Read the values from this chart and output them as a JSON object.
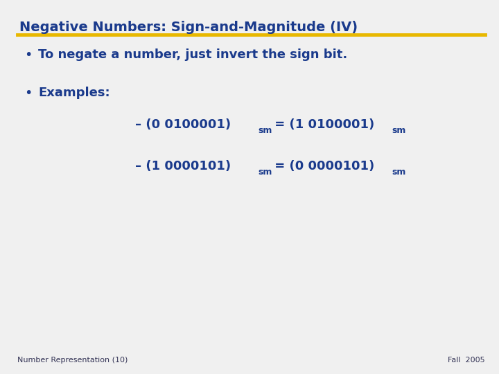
{
  "title": "Negative Numbers: Sign-and-Magnitude (IV)",
  "title_color": "#1a3a8c",
  "title_underline_color": "#e8b800",
  "bg_color": "#f0f0f0",
  "text_color": "#1a3a8c",
  "bullet1": "To negate a number, just invert the sign bit.",
  "bullet2": "Examples:",
  "example1_prefix": "– (0 0100001)",
  "example1_sub": "sm",
  "example1_mid": " = (1 0100001)",
  "example1_sub2": "sm",
  "example2_prefix": "– (1 0000101)",
  "example2_sub": "sm",
  "example2_mid": " = (0 0000101)",
  "example2_sub2": "sm",
  "footer_left": "Number Representation (10)",
  "footer_right": "Fall  2005",
  "title_fontsize": 14,
  "bullet_fontsize": 13,
  "example_fontsize": 13,
  "footer_fontsize": 8
}
